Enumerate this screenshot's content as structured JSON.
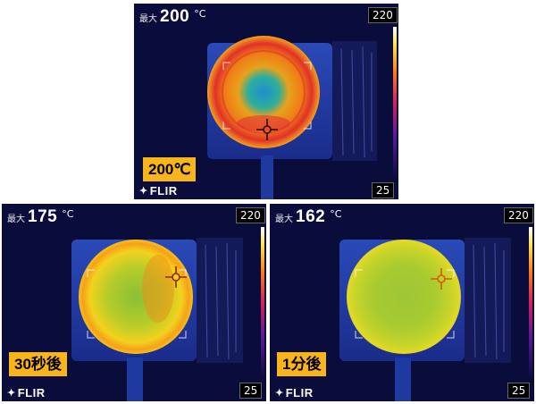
{
  "panels": [
    {
      "id": "top",
      "max_label": "最大",
      "max_value": "200",
      "unit": "°C",
      "scale_max": "220",
      "scale_min": "25",
      "badge": "200℃",
      "logo": "FLIR"
    },
    {
      "id": "bottom-left",
      "max_label": "最大",
      "max_value": "175",
      "unit": "°C",
      "scale_max": "220",
      "scale_min": "25",
      "badge": "30秒後",
      "logo": "FLIR"
    },
    {
      "id": "bottom-right",
      "max_label": "最大",
      "max_value": "162",
      "unit": "°C",
      "scale_max": "220",
      "scale_min": "25",
      "badge": "1分後",
      "logo": "FLIR"
    }
  ],
  "colors": {
    "background": "#0a0c3c",
    "badge": "#f7b51b",
    "crosshair": "#d85a12"
  },
  "icons": [
    "flir-logo-icon",
    "crosshair-icon"
  ]
}
